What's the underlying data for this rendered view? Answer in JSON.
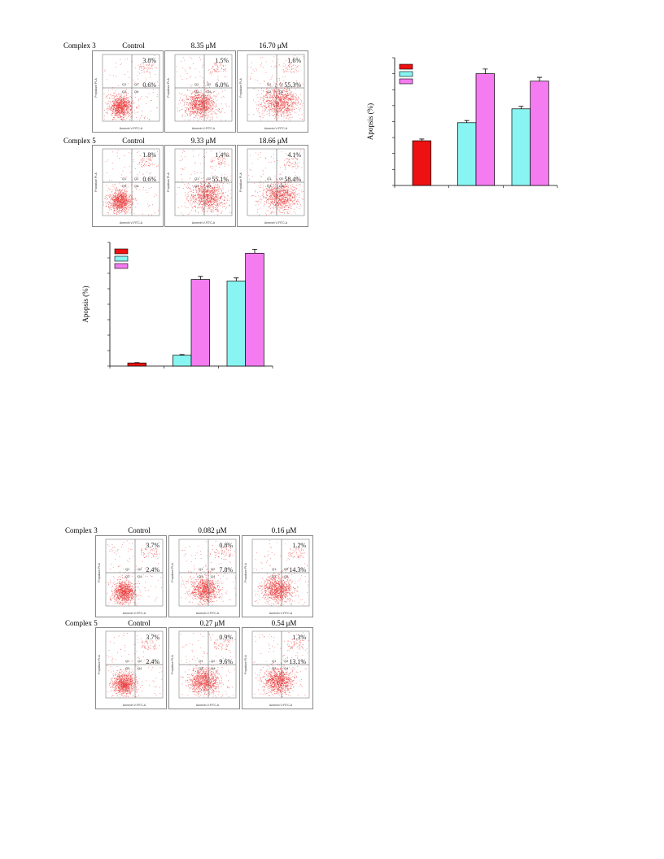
{
  "flow_top": {
    "groups": [
      {
        "label": "Complex 3",
        "headers": [
          "Control",
          "8.35 μM",
          "16.70 μM"
        ],
        "panels": [
          {
            "q2": "3.8%",
            "q4": "0.6%"
          },
          {
            "q2": "1.5%",
            "q4": "6.0%"
          },
          {
            "q2": "1.6%",
            "q4": "55.3%"
          }
        ]
      },
      {
        "label": "Complex 5",
        "headers": [
          "Control",
          "9.33 μM",
          "18.66 μM"
        ],
        "panels": [
          {
            "q2": "1.8%",
            "q4": "0.6%"
          },
          {
            "q2": "1.4%",
            "q4": "55.1%"
          },
          {
            "q2": "4.1%",
            "q4": "58.4%"
          }
        ]
      }
    ]
  },
  "flow_bottom": {
    "groups": [
      {
        "label": "Complex 3",
        "headers": [
          "Control",
          "0.082 μM",
          "0.16 μM"
        ],
        "panels": [
          {
            "q2": "3.7%",
            "q4": "2.4%"
          },
          {
            "q2": "0.8%",
            "q4": "7.8%"
          },
          {
            "q2": "1.2%",
            "q4": "14.3%"
          }
        ]
      },
      {
        "label": "Complex 5",
        "headers": [
          "Control",
          "0.27 μM",
          "0.54 μM"
        ],
        "panels": [
          {
            "q2": "3.7%",
            "q4": "2.4%"
          },
          {
            "q2": "0.9%",
            "q4": "9.6%"
          },
          {
            "q2": "1.3%",
            "q4": "13.1%"
          }
        ]
      }
    ]
  },
  "panel_text": {
    "quadrants": [
      "Q1",
      "Q2",
      "Q3",
      "Q4"
    ],
    "x_axis": "Annexin V-FITC-A",
    "y_axis": "Propidium PI-A"
  },
  "colors": {
    "red": "#ee1111",
    "cyan": "#88f5f2",
    "magenta": "#f47cf0",
    "dots": "#e83a3a"
  },
  "chart_data": [
    {
      "type": "bar",
      "ylabel": "Apopsis (%)",
      "categories": [
        "",
        "",
        ""
      ],
      "series": [
        {
          "color": "#ee1111",
          "values": [
            21,
            null,
            null
          ],
          "errors": [
            0.8,
            null,
            null
          ]
        },
        {
          "color": "#88f5f2",
          "values": [
            null,
            29.5,
            36
          ],
          "errors": [
            null,
            1.0,
            1.2
          ]
        },
        {
          "color": "#f47cf0",
          "values": [
            null,
            52.5,
            49
          ],
          "errors": [
            null,
            2.2,
            1.8
          ]
        }
      ],
      "ylim": [
        0,
        60
      ],
      "legend": "top-left"
    },
    {
      "type": "bar",
      "ylabel": "Apopsis (%)",
      "categories": [
        "",
        "",
        ""
      ],
      "series": [
        {
          "color": "#ee1111",
          "values": [
            1,
            null,
            null
          ],
          "errors": [
            0.1,
            null,
            null
          ]
        },
        {
          "color": "#88f5f2",
          "values": [
            null,
            3.5,
            27.5
          ],
          "errors": [
            null,
            0.2,
            1.0
          ]
        },
        {
          "color": "#f47cf0",
          "values": [
            null,
            28,
            36.5
          ],
          "errors": [
            null,
            1.0,
            1.3
          ]
        }
      ],
      "ylim": [
        0,
        40
      ],
      "legend": "top-left"
    }
  ]
}
